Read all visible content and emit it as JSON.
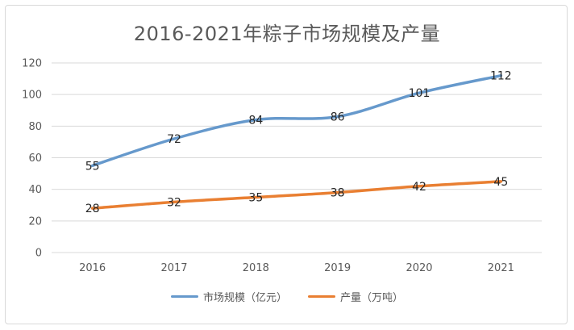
{
  "chart_data": {
    "type": "line",
    "title": "2016-2021年粽子市场规模及产量",
    "xlabel": "",
    "ylabel": "",
    "categories": [
      "2016",
      "2017",
      "2018",
      "2019",
      "2020",
      "2021"
    ],
    "ylim": [
      0,
      120
    ],
    "yticks": [
      0,
      20,
      40,
      60,
      80,
      100,
      120
    ],
    "grid": true,
    "legend_position": "bottom",
    "series": [
      {
        "name": "市场规模（亿元）",
        "values": [
          55,
          72,
          84,
          86,
          101,
          112
        ],
        "color": "#6699cc"
      },
      {
        "name": "产量（万吨）",
        "values": [
          28,
          32,
          35,
          38,
          42,
          45
        ],
        "color": "#e97f32"
      }
    ]
  }
}
